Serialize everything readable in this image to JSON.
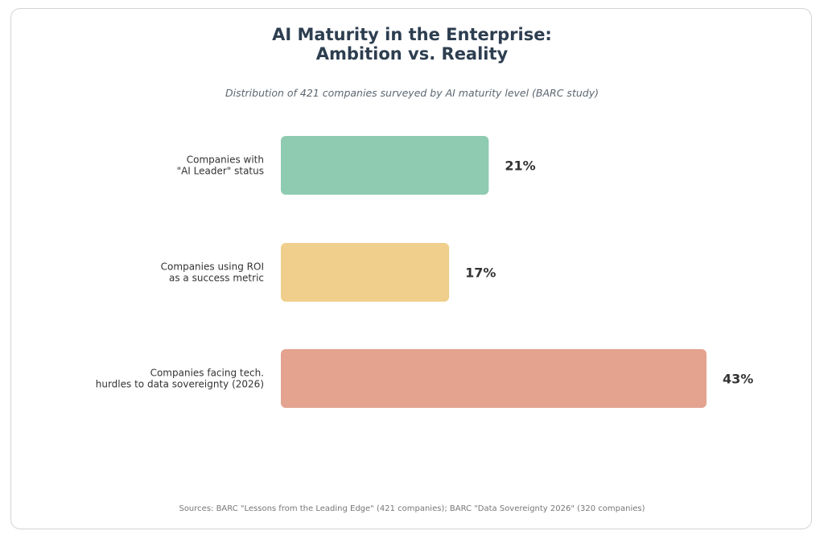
{
  "chart_data": {
    "type": "bar",
    "orientation": "horizontal",
    "title_lines": [
      "AI Maturity in the Enterprise:",
      "Ambition vs. Reality"
    ],
    "subtitle": "Distribution of 421 companies surveyed by AI maturity level (BARC study)",
    "xlabel": "",
    "ylabel": "",
    "xlim": [
      0,
      43
    ],
    "grid": false,
    "categories": [
      [
        "Companies with",
        "\"AI Leader\" status"
      ],
      [
        "Companies using ROI",
        "as a success metric"
      ],
      [
        "Companies facing tech.",
        "hurdles to data sovereignty (2026)"
      ]
    ],
    "values": [
      21,
      17,
      43
    ],
    "value_labels": [
      "21%",
      "17%",
      "43%"
    ],
    "colors": [
      "#8ecbb0",
      "#f0cf8c",
      "#e3a38f"
    ],
    "source": "Sources: BARC \"Lessons from the Leading Edge\" (421 companies); BARC \"Data Sovereignty 2026\" (320 companies)"
  }
}
